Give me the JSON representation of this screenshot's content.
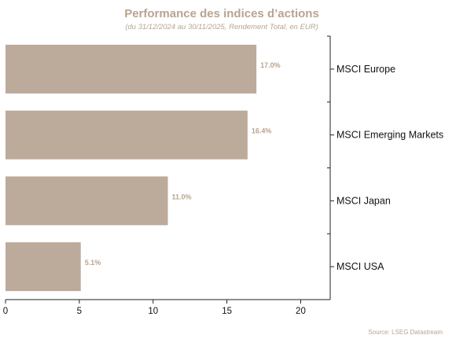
{
  "colors": {
    "bar": "#bcaa9b",
    "accent_text": "#b8a491",
    "axis": "#222222"
  },
  "chart_data": {
    "type": "bar",
    "orientation": "horizontal",
    "title": "Performance des indices d’actions",
    "subtitle": "(du 31/12/2024 au 30/11/2025, Rendement Total, en EUR)",
    "categories": [
      "MSCI Europe",
      "MSCI Emerging Markets",
      "MSCI Japan",
      "MSCI USA"
    ],
    "values": [
      17.0,
      16.4,
      11.0,
      5.1
    ],
    "value_labels": [
      "17.0%",
      "16.4%",
      "11.0%",
      "5.1%"
    ],
    "xlim": [
      0,
      22
    ],
    "xticks": [
      "0",
      "5",
      "10",
      "15",
      "20"
    ],
    "xtick_values": [
      0,
      5,
      10,
      15,
      20
    ],
    "category_axis_position": "right",
    "grid": false,
    "legend": "none",
    "source": "Source: LSEG Datastream"
  }
}
